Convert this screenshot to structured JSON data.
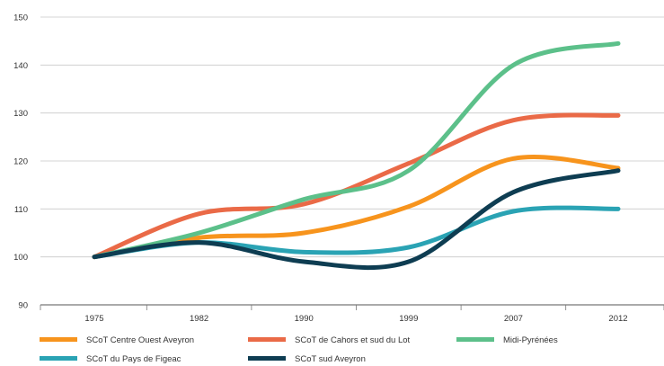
{
  "chart_data": {
    "type": "line",
    "x": [
      "1975",
      "1982",
      "1990",
      "1999",
      "2007",
      "2012"
    ],
    "ylim": [
      90,
      150
    ],
    "yticks": [
      90,
      100,
      110,
      120,
      130,
      140,
      150
    ],
    "grid": "horizontal",
    "legend_position": "bottom",
    "series": [
      {
        "name": "SCoT Centre Ouest Aveyron",
        "color": "#f7941d",
        "values": [
          100,
          104,
          105,
          110.5,
          120.5,
          118.5
        ]
      },
      {
        "name": "SCoT de Cahors et sud du Lot",
        "color": "#ea6a47",
        "values": [
          100,
          109,
          111,
          119.5,
          128.5,
          129.5
        ]
      },
      {
        "name": "Midi-Pyrénées",
        "color": "#5cc08a",
        "values": [
          100,
          105,
          112,
          118,
          140,
          144.5
        ]
      },
      {
        "name": "SCoT du Pays de Figeac",
        "color": "#2aa3b4",
        "values": [
          100,
          103,
          101,
          102,
          109.5,
          110
        ]
      },
      {
        "name": "SCoT sud Aveyron",
        "color": "#0e3d52",
        "values": [
          100,
          103,
          99,
          99,
          113.5,
          118
        ]
      }
    ]
  }
}
